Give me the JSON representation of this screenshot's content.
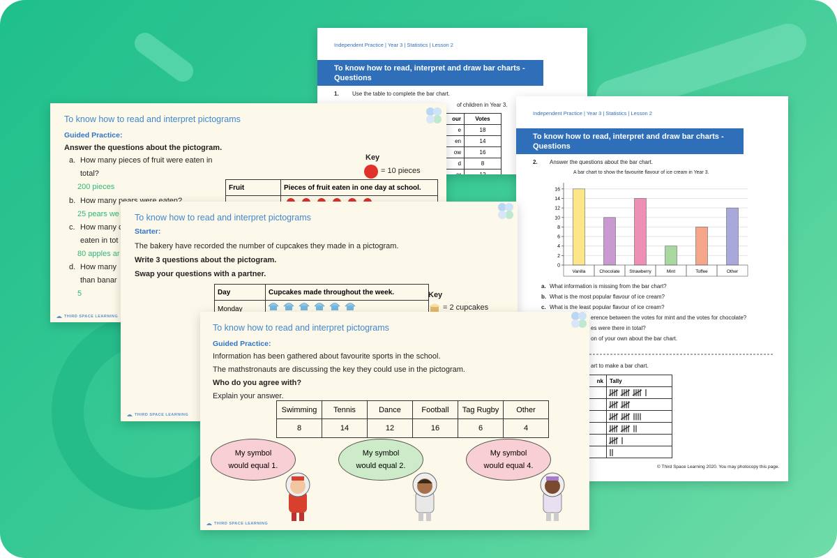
{
  "back_worksheet": {
    "header": "Independent Practice | Year 3 | Statistics | Lesson 2",
    "banner": "To know how to read, interpret and draw bar charts - Questions",
    "q_number": "1.",
    "question": "Use the table to complete the bar chart.",
    "subtext": "of children in Year 3.",
    "table": {
      "columns": [
        "our",
        "Votes"
      ],
      "rows": [
        [
          "e",
          18
        ],
        [
          "en",
          14
        ],
        [
          "ow",
          16
        ],
        [
          "d",
          8
        ],
        [
          "er",
          12
        ]
      ]
    }
  },
  "right_worksheet": {
    "header": "Independent Practice | Year 3 | Statistics | Lesson 2",
    "banner": "To know how to read, interpret and draw bar charts - Questions",
    "q_number": "2.",
    "question": "Answer the questions about the bar chart.",
    "questions": [
      {
        "label": "a.",
        "text": "What information is missing from the bar chart?"
      },
      {
        "label": "b.",
        "text": "What is the most popular flavour of ice cream?"
      },
      {
        "label": "c.",
        "text": "What is the least popular flavour of ice cream?"
      }
    ],
    "partial_questions": [
      "erence between the votes for mint and the votes for chocolate?",
      "es were there in total?",
      "on of your own about the bar chart."
    ],
    "q3": "art to make a bar chart.",
    "tally_table": {
      "columns": [
        "nk",
        "Tally"
      ],
      "tallies": [
        16,
        10,
        14,
        12,
        6,
        2
      ]
    },
    "footer": "© Third Space Learning 2020. You may photocopy this page."
  },
  "chart_data": {
    "type": "bar",
    "title": "A bar chart to show the favourite flavour of ice cream in Year 3.",
    "categories": [
      "Vanilla",
      "Chocolate",
      "Strawberry",
      "Mint",
      "Toffee",
      "Other"
    ],
    "values": [
      16,
      10,
      14,
      4,
      8,
      12
    ],
    "colors": [
      "#fde58a",
      "#c99ad0",
      "#ee8fb5",
      "#a8d7a0",
      "#f4a58a",
      "#a9a8dc"
    ],
    "ylim": [
      0,
      17
    ],
    "yticks": [
      0,
      2,
      4,
      6,
      8,
      10,
      12,
      14,
      16
    ],
    "grid": true
  },
  "fruit_slide": {
    "title": "To know how to read and interpret pictograms",
    "section": "Guided Practice:",
    "instruction": "Answer the questions about the pictogram.",
    "questions": [
      {
        "label": "a.",
        "lines": [
          "How many pieces of fruit were eaten in",
          "total?"
        ],
        "answer": "200 pieces"
      },
      {
        "label": "b.",
        "lines": [
          "How many pears were eaten?"
        ],
        "answer": "25 pears we"
      },
      {
        "label": "c.",
        "lines": [
          "How many c",
          "eaten in tot"
        ],
        "answer": "80 apples ar"
      },
      {
        "label": "d.",
        "lines": [
          "How many",
          "than banar"
        ],
        "answer": "5"
      }
    ],
    "key_label": "Key",
    "key_text": "= 10 pieces",
    "table_header": [
      "Fruit",
      "Pieces of fruit eaten in one day at school."
    ],
    "footer": "THIRD SPACE LEARNING"
  },
  "cupcake_slide": {
    "title": "To know how to read and interpret pictograms",
    "section": "Starter:",
    "lines": [
      "The bakery have recorded the number of cupcakes they made in a pictogram.",
      "Write 3 questions about the pictogram.",
      "Swap your questions with a partner."
    ],
    "table_header": [
      "Day",
      "Cupcakes made throughout the week."
    ],
    "row_label": "Monday",
    "key_label": "Key",
    "key_text": "= 2 cupcakes",
    "footer": "THIRD SPACE LEARNING"
  },
  "sports_slide": {
    "title": "To know how to read and interpret pictograms",
    "section": "Guided Practice:",
    "lines": [
      "Information has been gathered about favourite sports in the school.",
      "The mathstronauts are discussing the key they could use in the pictogram."
    ],
    "question": "Who do you agree with?",
    "prompt": "Explain your answer.",
    "table": {
      "categories": [
        "Swimming",
        "Tennis",
        "Dance",
        "Football",
        "Tag Rugby",
        "Other"
      ],
      "values": [
        8,
        14,
        12,
        16,
        6,
        4
      ]
    },
    "bubbles": [
      "My symbol would equal 1.",
      "My symbol would equal 2.",
      "My symbol would equal 4."
    ],
    "footer": "THIRD SPACE LEARNING"
  }
}
